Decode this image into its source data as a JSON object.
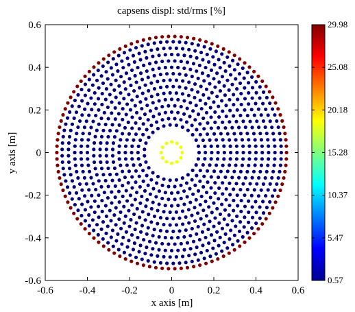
{
  "chart_data": {
    "type": "scatter",
    "title": "capsens displ: std/rms [%]",
    "xlabel": "x axis [m]",
    "ylabel": "y axis [m]",
    "xlim": [
      -0.6,
      0.6
    ],
    "ylim": [
      -0.6,
      0.6
    ],
    "x_ticks": [
      -0.6,
      -0.4,
      -0.2,
      0,
      0.2,
      0.4,
      0.6
    ],
    "y_ticks": [
      -0.6,
      -0.4,
      -0.2,
      0,
      0.2,
      0.4,
      0.6
    ],
    "x_tick_labels": [
      "-0.6",
      "-0.4",
      "-0.2",
      "0",
      "0.2",
      "0.4",
      "0.6"
    ],
    "y_tick_labels": [
      "-0.6",
      "-0.4",
      "-0.2",
      "0",
      "0.2",
      "0.4",
      "0.6"
    ],
    "grid": false,
    "colormap": "jet",
    "colorbar": {
      "min": 0.57,
      "max": 29.98,
      "tick_values": [
        0.57,
        5.47,
        10.37,
        15.28,
        20.18,
        25.08,
        29.98
      ],
      "tick_labels": [
        "0.57",
        "5.47",
        "10.37",
        "15.28",
        "20.18",
        "25.08",
        "29.98"
      ]
    },
    "sensor_layout": {
      "description": "concentric rings of point sensors",
      "outer_ring": {
        "radius_m": 0.545,
        "value_pct": 29.98
      },
      "inner_rings": {
        "radius_min_m": 0.13,
        "radius_max_m": 0.525,
        "spacing_m": 0.03,
        "value_pct": 0.57
      },
      "center_ring": {
        "radius_m": 0.05,
        "count": 12,
        "value_pct": 18.5
      }
    },
    "colors": {
      "low": "#00008f",
      "center": "#d6ff29",
      "high": "#800000"
    }
  }
}
